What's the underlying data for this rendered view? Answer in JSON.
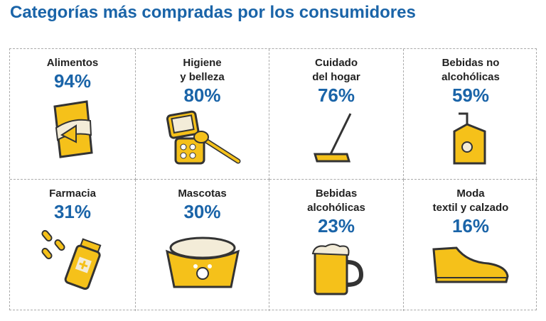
{
  "title": "Categorías más compradas por los consumidores",
  "colors": {
    "accent": "#1a64a8",
    "icon": "#f5c11a"
  },
  "categories": [
    {
      "label": "Alimentos",
      "value": "94%",
      "icon": "chips-bag-icon"
    },
    {
      "label": "Higiene\ny belleza",
      "value": "80%",
      "icon": "makeup-compact-icon"
    },
    {
      "label": "Cuidado\ndel hogar",
      "value": "76%",
      "icon": "mop-icon"
    },
    {
      "label": "Bebidas no\nalcohólicas",
      "value": "59%",
      "icon": "juice-box-icon"
    },
    {
      "label": "Farmacia",
      "value": "31%",
      "icon": "pills-icon"
    },
    {
      "label": "Mascotas",
      "value": "30%",
      "icon": "pet-bowl-icon"
    },
    {
      "label": "Bebidas\nalcohólicas",
      "value": "23%",
      "icon": "beer-mug-icon"
    },
    {
      "label": "Moda\ntextil y calzado",
      "value": "16%",
      "icon": "sneaker-icon"
    }
  ]
}
